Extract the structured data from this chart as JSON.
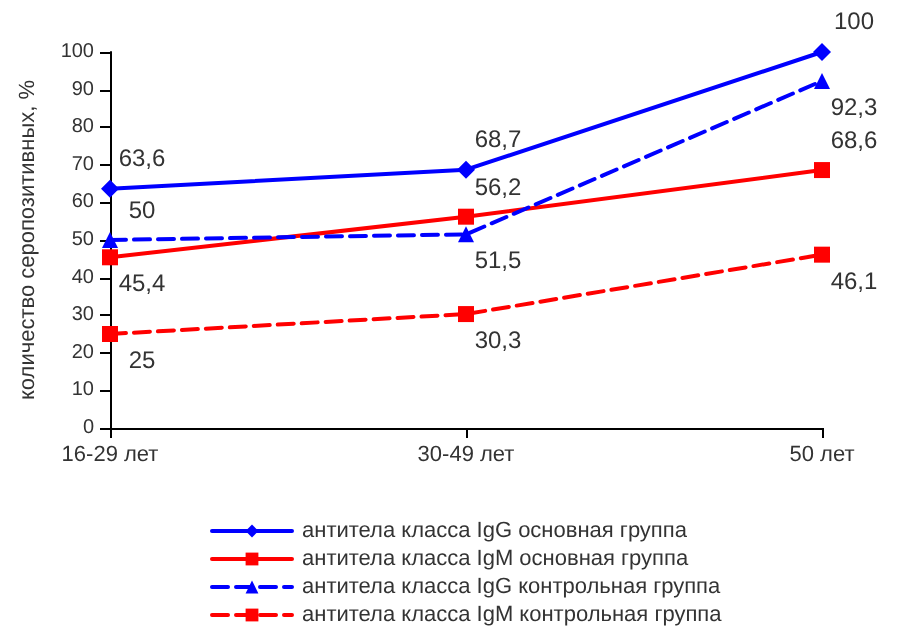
{
  "chart_data": {
    "type": "line",
    "ylabel": "количество серопозитивных, %",
    "categories": [
      "16-29 лет",
      "30-49 лет",
      "50 лет"
    ],
    "ylim": [
      0,
      100
    ],
    "yticks": [
      0,
      10,
      20,
      30,
      40,
      50,
      60,
      70,
      80,
      90,
      100
    ],
    "grid": false,
    "legend": "bottom",
    "series": [
      {
        "name": "антитела класса IgG основная группа",
        "color": "#0000ff",
        "values": [
          63.6,
          68.7,
          100
        ],
        "value_labels": [
          "63,6",
          "68,7",
          "100"
        ],
        "marker": "diamond",
        "line_style": "solid"
      },
      {
        "name": "антитела класса IgM основная группа",
        "color": "#ff0000",
        "values": [
          45.4,
          56.2,
          68.6
        ],
        "value_labels": [
          "45,4",
          "56,2",
          "68,6"
        ],
        "marker": "square",
        "line_style": "solid"
      },
      {
        "name": "антитела класса IgG контрольная группа",
        "color": "#0000ff",
        "values": [
          50,
          51.5,
          92.3
        ],
        "value_labels": [
          "50",
          "51,5",
          "92,3"
        ],
        "marker": "triangle",
        "line_style": "dashed"
      },
      {
        "name": "антитела класса IgM контрольная группа",
        "color": "#ff0000",
        "values": [
          25,
          30.3,
          46.1
        ],
        "value_labels": [
          "25",
          "30,3",
          "46,1"
        ],
        "marker": "square",
        "line_style": "dashed"
      }
    ]
  }
}
